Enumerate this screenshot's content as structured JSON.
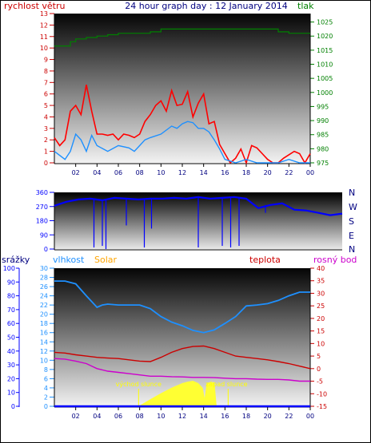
{
  "title": "24 hour graph day : 12 January 2014",
  "colors": {
    "wind": "#ff0000",
    "gust": "#ff0000",
    "avgwind": "#1e90ff",
    "pressure": "#008000",
    "winddir": "#0000ff",
    "humidity": "#1e90ff",
    "solar": "#ffff33",
    "temp": "#cc0000",
    "dew": "#cc00cc",
    "rain": "#0000ff",
    "solarLabel": "#ffa500"
  },
  "chart_data": [
    {
      "type": "line",
      "name": "wind-pressure",
      "xlabels": [
        "02",
        "04",
        "06",
        "08",
        "10",
        "12",
        "14",
        "16",
        "18",
        "20",
        "22",
        "00"
      ],
      "left_axis": {
        "label": "rychlost větru",
        "min": 0,
        "max": 13,
        "ticks": [
          0,
          1,
          2,
          3,
          4,
          5,
          6,
          7,
          8,
          9,
          10,
          11,
          12,
          13
        ]
      },
      "right_axis": {
        "label": "tlak",
        "min": 975,
        "max": 1028,
        "ticks": [
          975,
          980,
          985,
          990,
          995,
          1000,
          1005,
          1010,
          1015,
          1020,
          1025
        ]
      },
      "series": [
        {
          "id": "gust",
          "axis": "left",
          "x": [
            0,
            0.5,
            1,
            1.5,
            2,
            2.5,
            3,
            3.5,
            4,
            4.5,
            5,
            5.5,
            6,
            6.5,
            7,
            7.5,
            8,
            8.5,
            9,
            9.5,
            10,
            10.5,
            11,
            11.5,
            12,
            12.5,
            13,
            13.5,
            14,
            14.5,
            15,
            15.5,
            16,
            16.5,
            17,
            17.5,
            18,
            18.5,
            19,
            19.5,
            20,
            20.5,
            21,
            21.5,
            22,
            22.5,
            23,
            23.5,
            24
          ],
          "values": [
            2.2,
            1.5,
            2.0,
            4.5,
            5.0,
            4.2,
            6.8,
            4.5,
            2.5,
            2.5,
            2.4,
            2.5,
            2.0,
            2.5,
            2.4,
            2.2,
            2.5,
            3.6,
            4.2,
            5.0,
            5.4,
            4.5,
            6.3,
            5.0,
            5.1,
            6.2,
            4.0,
            5.2,
            6.0,
            3.4,
            3.6,
            1.6,
            0.8,
            0.0,
            0.4,
            1.2,
            0.0,
            1.5,
            1.3,
            0.8,
            0.3,
            0.0,
            0.0,
            0.4,
            0.7,
            1.0,
            0.8,
            0.0,
            0.8
          ]
        },
        {
          "id": "average",
          "axis": "left",
          "x": [
            0,
            1,
            1.5,
            2,
            2.5,
            3,
            3.5,
            4,
            5,
            6,
            7,
            7.5,
            8,
            8.5,
            9,
            10,
            11,
            11.5,
            12,
            12.5,
            13,
            13.5,
            14,
            14.5,
            15,
            15.5,
            16,
            17,
            18,
            19,
            20,
            21,
            22,
            23,
            24
          ],
          "values": [
            1.0,
            0.3,
            1.0,
            2.5,
            2.0,
            1.0,
            2.4,
            1.5,
            1.0,
            1.5,
            1.3,
            1.0,
            1.5,
            2.0,
            2.2,
            2.5,
            3.2,
            3.0,
            3.4,
            3.6,
            3.5,
            3.0,
            3.0,
            2.7,
            2.0,
            1.2,
            0.3,
            0.0,
            0.3,
            0.0,
            0.0,
            0.0,
            0.3,
            0.0,
            0.0
          ]
        },
        {
          "id": "pressure",
          "axis": "right",
          "x": [
            0,
            1,
            1.5,
            2,
            3,
            4,
            5,
            6,
            7,
            8,
            9,
            10,
            11,
            12,
            13,
            14,
            15,
            16,
            17,
            18,
            19,
            20,
            21,
            22,
            23,
            24
          ],
          "values": [
            1016.5,
            1016.5,
            1018,
            1019,
            1019.5,
            1020,
            1020.5,
            1021,
            1021,
            1021,
            1021.5,
            1022.5,
            1022.5,
            1022.5,
            1022.5,
            1022.5,
            1022.5,
            1022.5,
            1022.5,
            1022.5,
            1022.5,
            1022.5,
            1021.5,
            1021,
            1021,
            1021
          ]
        }
      ]
    },
    {
      "type": "line",
      "name": "wind-direction",
      "xlabels": [],
      "left_axis": {
        "min": 0,
        "max": 360,
        "ticks": [
          0,
          90,
          180,
          270,
          360
        ]
      },
      "right_labels": [
        "N",
        "W",
        "S",
        "E",
        "N"
      ],
      "series": [
        {
          "id": "direction",
          "x": [
            0,
            1,
            2,
            3,
            4,
            5,
            6,
            7,
            8,
            9,
            10,
            11,
            12,
            13,
            14,
            15,
            16,
            17,
            18,
            19,
            20,
            21,
            22,
            23,
            24
          ],
          "values": [
            275,
            300,
            315,
            320,
            310,
            325,
            320,
            315,
            320,
            320,
            325,
            320,
            330,
            320,
            325,
            330,
            320,
            260,
            280,
            290,
            250,
            245,
            230,
            215,
            225
          ]
        },
        {
          "id": "spikes",
          "x": [
            3.3,
            4.0,
            4.3,
            6.0,
            7.5,
            8.1,
            12.0,
            14.0,
            14.7,
            15.4,
            17.6
          ],
          "values": [
            10,
            20,
            0,
            150,
            10,
            130,
            10,
            20,
            10,
            20,
            230
          ]
        }
      ]
    },
    {
      "type": "line",
      "name": "humidity-temperature",
      "xlabels": [
        "02",
        "04",
        "06",
        "08",
        "10",
        "12",
        "14",
        "16",
        "18",
        "20",
        "22",
        "00"
      ],
      "axis_rain": {
        "label": "srážky",
        "min": 0,
        "max": 100,
        "ticks": [
          0,
          10,
          20,
          30,
          40,
          50,
          60,
          70,
          80,
          90,
          100
        ]
      },
      "axis_hum": {
        "label": "vlhkost",
        "min": 0,
        "max": 30,
        "ticks": [
          0,
          2,
          4,
          6,
          8,
          10,
          12,
          14,
          16,
          18,
          20,
          22,
          24,
          26,
          28,
          30
        ]
      },
      "axis_temp": {
        "label": "teplota",
        "min": -15,
        "max": 40,
        "ticks": [
          -15,
          -10,
          -5,
          0,
          5,
          10,
          15,
          20,
          25,
          30,
          35,
          40
        ]
      },
      "legend": {
        "solar": "Solar",
        "dew": "rosný bod"
      },
      "annotations": {
        "sunrise": "východ slunce",
        "sunset": "západ slunce",
        "sunrise_hour": 7.9,
        "sunset_hour": 16.3
      },
      "series": [
        {
          "id": "humidity",
          "axis": "hum",
          "x": [
            0,
            1,
            2,
            3,
            4,
            4.5,
            5,
            6,
            7,
            8,
            9,
            10,
            11,
            12,
            13,
            14,
            14.5,
            15,
            16,
            17,
            18,
            19,
            20,
            21,
            22,
            23,
            24
          ],
          "values": [
            27.2,
            27.2,
            26.6,
            24,
            21.5,
            22,
            22.2,
            22,
            22,
            22,
            21.2,
            19.5,
            18.3,
            17.5,
            16.5,
            16,
            16.3,
            16.6,
            18,
            19.5,
            21.8,
            22,
            22.3,
            23,
            24,
            24.8,
            24.8
          ]
        },
        {
          "id": "temperature",
          "axis": "temp",
          "x": [
            0,
            1,
            2,
            3,
            4,
            5,
            6,
            7,
            8,
            9,
            10,
            11,
            12,
            13,
            14,
            15,
            16,
            17,
            18,
            19,
            20,
            21,
            22,
            23,
            24
          ],
          "values": [
            6.5,
            6.2,
            5.5,
            5,
            4.5,
            4.2,
            4,
            3.5,
            3,
            2.8,
            4.5,
            6.5,
            8,
            8.8,
            9,
            8,
            6.5,
            5,
            4.5,
            4,
            3.5,
            2.8,
            2,
            1,
            0
          ]
        },
        {
          "id": "dew",
          "axis": "temp",
          "x": [
            0,
            1,
            2,
            3,
            4,
            5,
            6,
            7,
            8,
            9,
            10,
            11,
            12,
            13,
            14,
            15,
            16,
            17,
            18,
            19,
            20,
            21,
            22,
            23,
            24
          ],
          "values": [
            4,
            3.8,
            3,
            2,
            0,
            -1,
            -1.5,
            -2,
            -2.5,
            -3,
            -3,
            -3.2,
            -3.3,
            -3.5,
            -3.5,
            -3.6,
            -3.8,
            -4,
            -4,
            -4.2,
            -4.3,
            -4.3,
            -4.5,
            -5,
            -5
          ]
        },
        {
          "id": "solar",
          "axis": "hum",
          "x": [
            7.9,
            8.5,
            9,
            10,
            11,
            12,
            12.5,
            13,
            13.5,
            13.9,
            14.1,
            14.3,
            14.6,
            15,
            15.2,
            16.3
          ],
          "values": [
            0,
            0.8,
            1.5,
            2.8,
            4,
            5,
            5.3,
            5.5,
            5,
            4,
            1.5,
            5,
            5.2,
            5.2,
            0,
            0
          ]
        },
        {
          "id": "rain",
          "axis": "rain",
          "x": [
            0,
            24
          ],
          "values": [
            0,
            0
          ]
        }
      ]
    }
  ]
}
